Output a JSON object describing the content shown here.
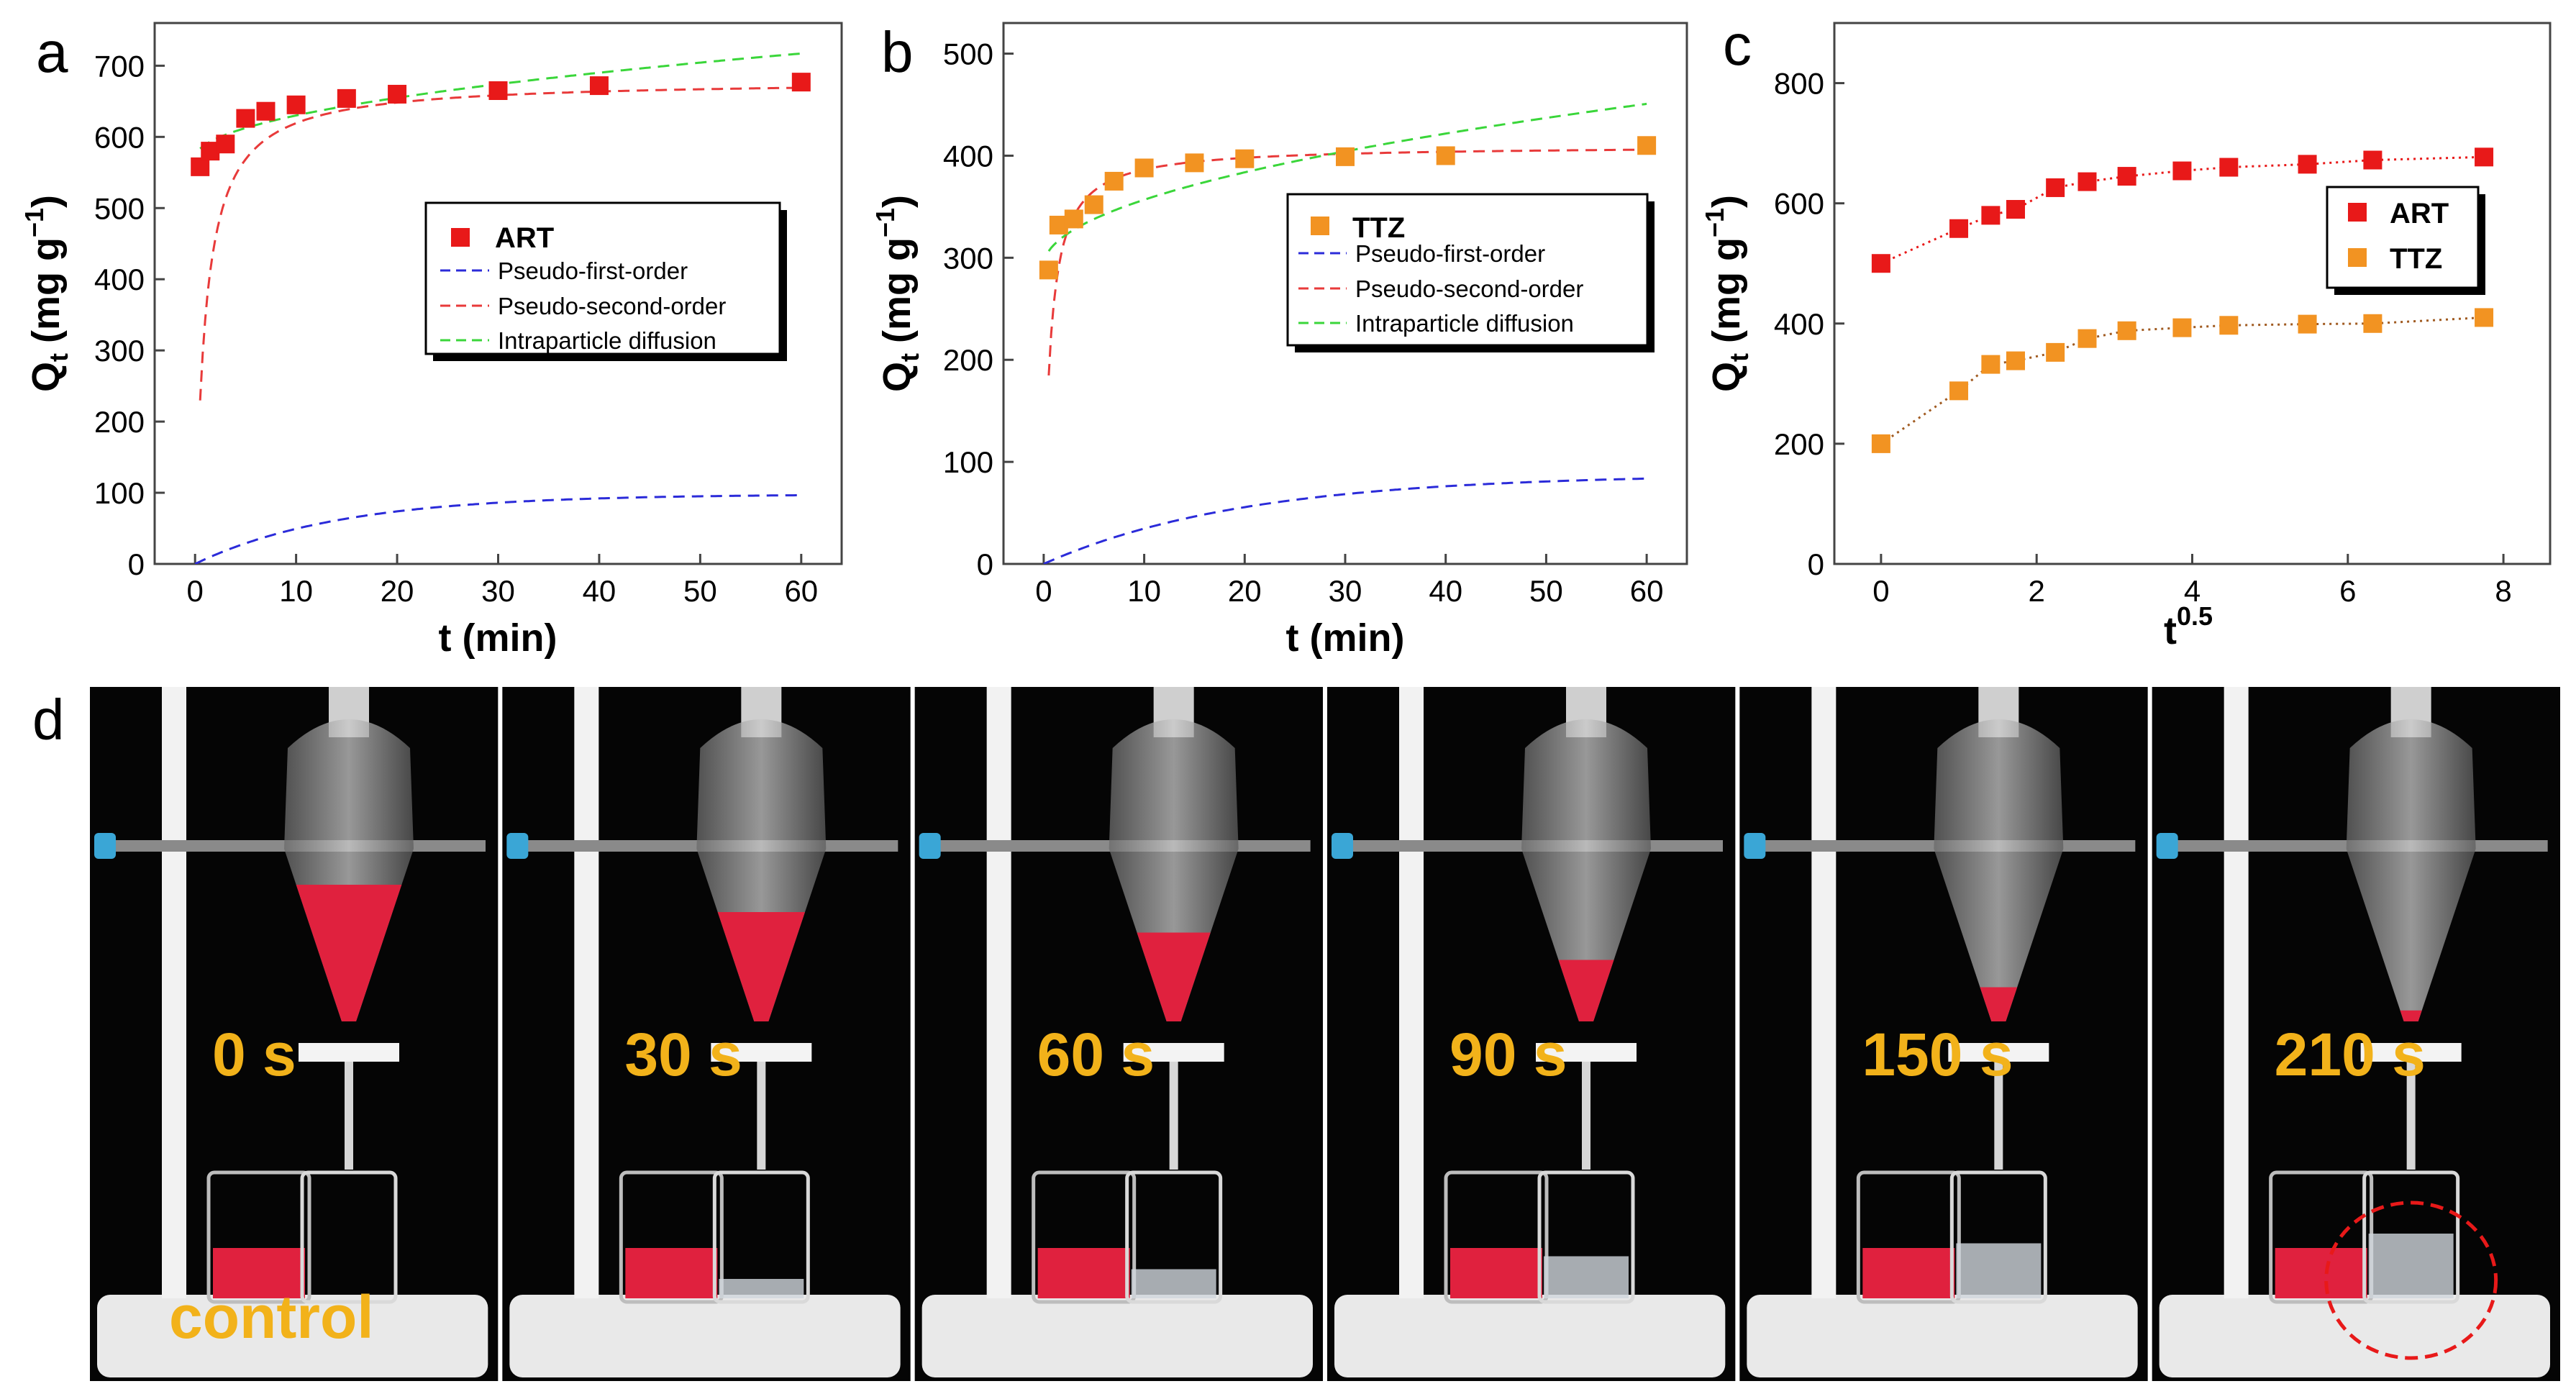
{
  "panel_labels": {
    "a": "a",
    "b": "b",
    "c": "c",
    "d": "d"
  },
  "chart_data": [
    {
      "panel": "a",
      "type": "scatter",
      "xlabel": "t (min)",
      "ylabel": "Q",
      "ylabel_sub": "t",
      "yunit_open": "(mg g",
      "yunit_sup": "−1",
      "yunit_close": ")",
      "xlim": [
        -4,
        64
      ],
      "ylim": [
        0,
        760
      ],
      "xticks": [
        0,
        10,
        20,
        30,
        40,
        50,
        60
      ],
      "yticks": [
        0,
        100,
        200,
        300,
        400,
        500,
        600,
        700
      ],
      "legend": {
        "marker_label": "ART",
        "lines": [
          "Pseudo-first-order",
          "Pseudo-second-order",
          "Intraparticle diffusion"
        ]
      },
      "marker_color": "#e81919",
      "points": {
        "x": [
          0.5,
          1.5,
          3,
          5,
          7,
          10,
          15,
          20,
          30,
          40,
          60
        ],
        "y": [
          558,
          580,
          590,
          626,
          636,
          645,
          654,
          660,
          665,
          672,
          677
        ]
      },
      "fits": {
        "pseudo_first_order": {
          "qe": 98,
          "k": 0.07,
          "color": "#2b2bd9"
        },
        "pseudo_second_order": {
          "qe": 680,
          "k": 0.0015,
          "color": "#e83a3a"
        },
        "intraparticle_diffusion": {
          "kid": 19,
          "c": 570,
          "color": "#3ad63a"
        }
      }
    },
    {
      "panel": "b",
      "type": "scatter",
      "xlabel": "t (min)",
      "ylabel": "Q",
      "ylabel_sub": "t",
      "yunit_open": "(mg g",
      "yunit_sup": "−1",
      "yunit_close": ")",
      "xlim": [
        -4,
        64
      ],
      "ylim": [
        0,
        530
      ],
      "xticks": [
        0,
        10,
        20,
        30,
        40,
        50,
        60
      ],
      "yticks": [
        0,
        100,
        200,
        300,
        400,
        500
      ],
      "legend": {
        "marker_label": "TTZ",
        "lines": [
          "Pseudo-first-order",
          "Pseudo-second-order",
          "Intraparticle diffusion"
        ]
      },
      "marker_color": "#f29322",
      "points": {
        "x": [
          0.5,
          1.5,
          3,
          5,
          7,
          10,
          15,
          20,
          30,
          40,
          60
        ],
        "y": [
          288,
          332,
          338,
          352,
          375,
          388,
          393,
          397,
          399,
          400,
          410
        ]
      },
      "fits": {
        "pseudo_first_order": {
          "qe": 88,
          "k": 0.05,
          "color": "#2b2bd9"
        },
        "pseudo_second_order": {
          "qe": 410,
          "k": 0.004,
          "color": "#e83a3a"
        },
        "intraparticle_diffusion": {
          "kid": 20.5,
          "c": 292,
          "color": "#3ad63a"
        }
      }
    },
    {
      "panel": "c",
      "type": "scatter",
      "xlabel": "t",
      "xlabel_sup": "0.5",
      "ylabel": "Q",
      "ylabel_sub": "t",
      "yunit_open": "(mg g",
      "yunit_sup": "−1",
      "yunit_close": ")",
      "xlim": [
        -0.6,
        8.6
      ],
      "ylim": [
        0,
        900
      ],
      "xticks": [
        0,
        2,
        4,
        6,
        8
      ],
      "yticks": [
        0,
        200,
        400,
        600,
        800
      ],
      "series": [
        {
          "name": "ART",
          "color": "#e81919",
          "x": [
            0,
            1,
            1.41,
            1.73,
            2.24,
            2.65,
            3.16,
            3.87,
            4.47,
            5.48,
            6.32,
            7.75
          ],
          "y": [
            500,
            558,
            580,
            590,
            626,
            636,
            645,
            654,
            660,
            665,
            672,
            677
          ]
        },
        {
          "name": "TTZ",
          "color": "#f29322",
          "x": [
            0,
            1,
            1.41,
            1.73,
            2.24,
            2.65,
            3.16,
            3.87,
            4.47,
            5.48,
            6.32,
            7.75
          ],
          "y": [
            200,
            288,
            332,
            338,
            352,
            375,
            388,
            393,
            397,
            399,
            400,
            410
          ]
        }
      ]
    }
  ],
  "photos": {
    "times": [
      "0 s",
      "30 s",
      "60 s",
      "90 s",
      "150 s",
      "210 s"
    ],
    "control_label": "control"
  }
}
